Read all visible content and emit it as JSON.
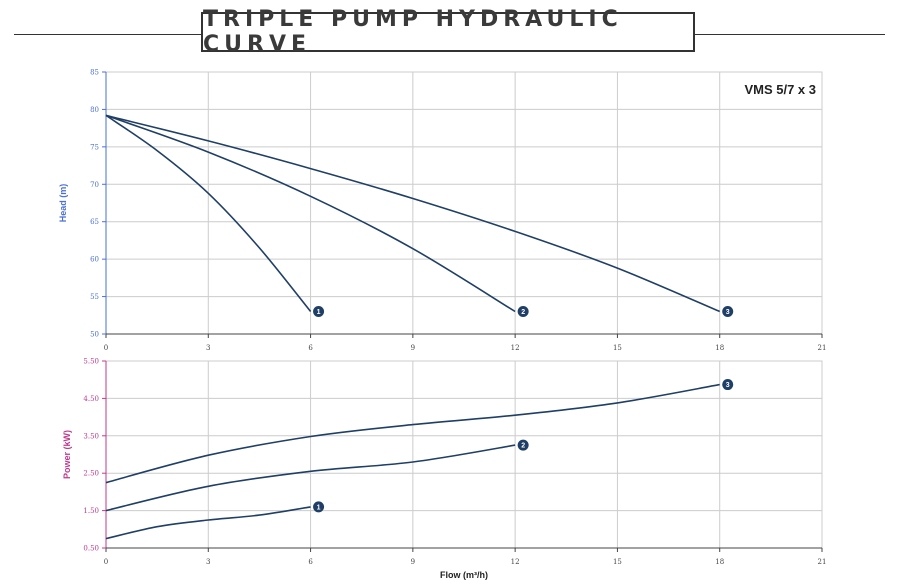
{
  "header": {
    "title": "TRIPLE PUMP HYDRAULIC CURVE"
  },
  "colors": {
    "curve": "#1f3f66",
    "grid": "#cccccc",
    "head_axis": "#4a6fd6",
    "power_axis": "#c0398f",
    "badge": "#1f3f66"
  },
  "chart_data": [
    {
      "type": "line",
      "model_label": "VMS 5/7 x 3",
      "xlabel": "",
      "ylabel": "Head (m)",
      "xlim": [
        0,
        21
      ],
      "ylim": [
        50,
        85
      ],
      "x_ticks": [
        "0",
        "3",
        "6",
        "9",
        "12",
        "15",
        "18",
        "21"
      ],
      "y_ticks": [
        "50",
        "55",
        "60",
        "65",
        "70",
        "75",
        "80",
        "85"
      ],
      "grid": true,
      "series": [
        {
          "name": "1",
          "x": [
            0,
            1.5,
            3,
            4.5,
            6
          ],
          "y": [
            79.2,
            74.5,
            68.8,
            61.5,
            53
          ]
        },
        {
          "name": "2",
          "x": [
            0,
            3,
            6,
            9,
            12
          ],
          "y": [
            79.2,
            74.3,
            68.4,
            61.4,
            53
          ]
        },
        {
          "name": "3",
          "x": [
            0,
            3,
            6,
            9,
            12,
            15,
            18
          ],
          "y": [
            79.2,
            75.8,
            72.1,
            68.1,
            63.7,
            58.8,
            53
          ]
        }
      ]
    },
    {
      "type": "line",
      "xlabel": "Flow (m³/h)",
      "ylabel": "Power (kW)",
      "xlim": [
        0,
        21
      ],
      "ylim": [
        0.5,
        5.5
      ],
      "x_ticks": [
        "0",
        "3",
        "6",
        "9",
        "12",
        "15",
        "18",
        "21"
      ],
      "y_ticks": [
        "0.50",
        "1.50",
        "2.50",
        "3.50",
        "4.50",
        "5.50"
      ],
      "grid": true,
      "series": [
        {
          "name": "1",
          "x": [
            0,
            1.5,
            3,
            4.5,
            6
          ],
          "y": [
            0.75,
            1.07,
            1.25,
            1.38,
            1.6
          ]
        },
        {
          "name": "2",
          "x": [
            0,
            3,
            6,
            9,
            12
          ],
          "y": [
            1.5,
            2.15,
            2.55,
            2.8,
            3.25
          ]
        },
        {
          "name": "3",
          "x": [
            0,
            3,
            6,
            9,
            12,
            15,
            18
          ],
          "y": [
            2.25,
            2.98,
            3.48,
            3.8,
            4.05,
            4.38,
            4.87
          ]
        }
      ]
    }
  ]
}
